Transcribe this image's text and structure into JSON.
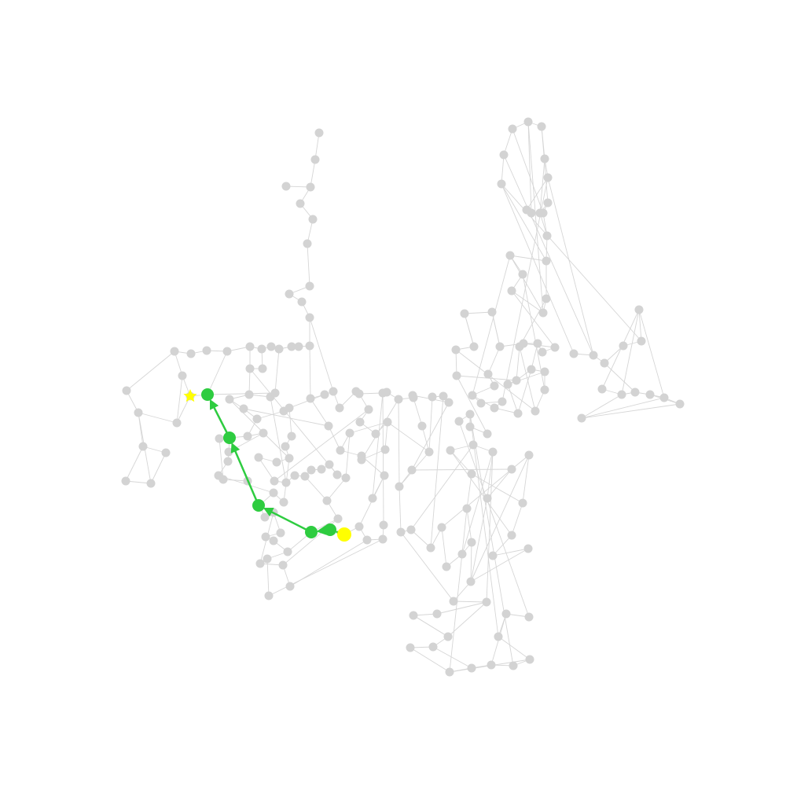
{
  "colors": {
    "background": "#ffffff",
    "edge": "#d6d6d6",
    "node": "#d3d3d3",
    "path": "#2ecc40",
    "goal": "#ffff00",
    "start": "#ffff00"
  },
  "start_marker": "star-icon",
  "goal_marker": "circle-icon"
}
